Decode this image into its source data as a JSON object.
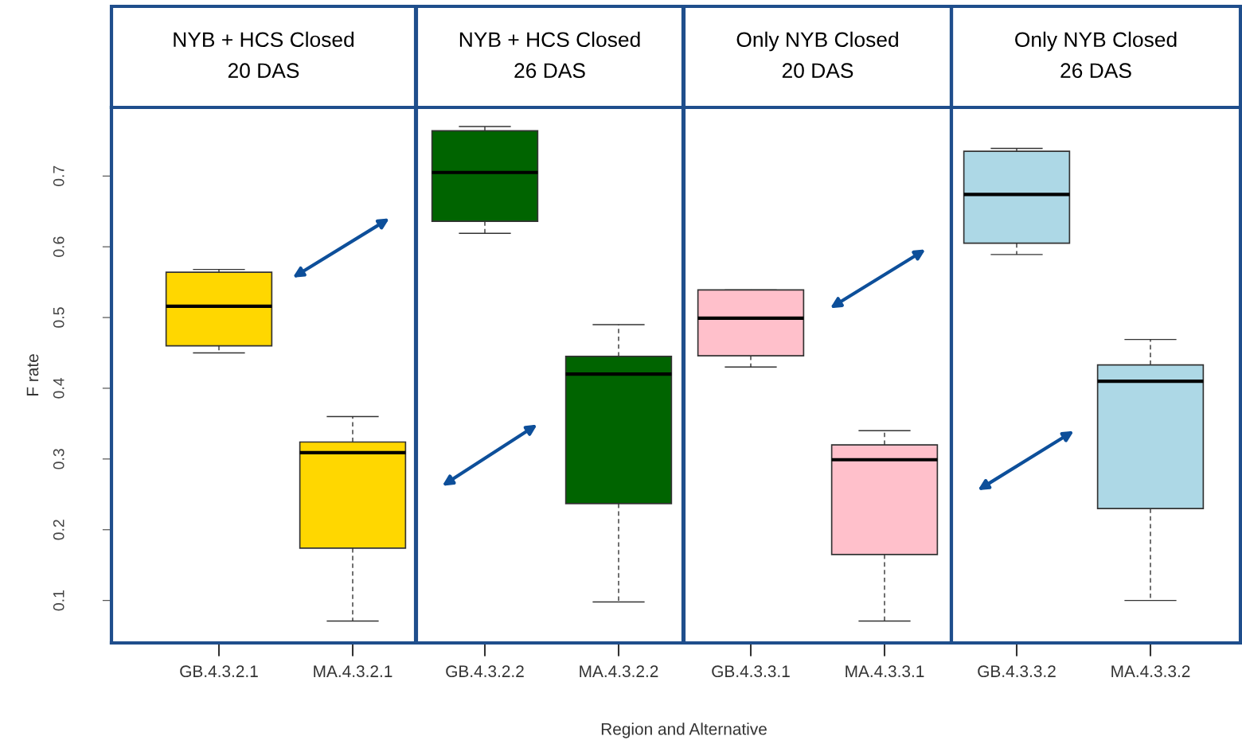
{
  "chart_data": [
    {
      "type": "box",
      "title": "NYB + HCS Closed\n20 DAS",
      "ylabel": "F rate",
      "categories": [
        "GB.4.3.2.1",
        "MA.4.3.2.1"
      ],
      "color": "#ffd700",
      "ylim": [
        0.04,
        0.797
      ],
      "yticks": [
        0.1,
        0.2,
        0.3,
        0.4,
        0.5,
        0.6,
        0.7
      ],
      "annotations": [
        "Region and Alternative"
      ],
      "boxes": [
        {
          "low": 0.45,
          "q1": 0.46,
          "median": 0.516,
          "q3": 0.564,
          "high": 0.568
        },
        {
          "low": 0.071,
          "q1": 0.174,
          "median": 0.309,
          "q3": 0.324,
          "high": 0.36
        }
      ]
    },
    {
      "type": "box",
      "title": "NYB + HCS Closed\n26 DAS",
      "categories": [
        "GB.4.3.2.2",
        "MA.4.3.2.2"
      ],
      "color": "#006400",
      "ylim": [
        0.04,
        0.797
      ],
      "tick_labels": "x",
      "boxes": [
        {
          "low": 0.619,
          "q1": 0.636,
          "median": 0.705,
          "q3": 0.764,
          "high": 0.77
        },
        {
          "low": 0.098,
          "q1": 0.237,
          "median": 0.42,
          "q3": 0.445,
          "high": 0.49
        }
      ]
    },
    {
      "type": "box",
      "title": "Only NYB Closed\n20 DAS",
      "categories": [
        "GB.4.3.3.1",
        "MA.4.3.3.1"
      ],
      "color": "#ffc0cb",
      "ylim": [
        0.04,
        0.797
      ],
      "tick_labels": "x",
      "boxes": [
        {
          "low": 0.43,
          "q1": 0.446,
          "median": 0.499,
          "q3": 0.539,
          "high": 0.539
        },
        {
          "low": 0.071,
          "q1": 0.165,
          "median": 0.299,
          "q3": 0.32,
          "high": 0.34
        }
      ]
    },
    {
      "type": "box",
      "title": "Only NYB Closed\n26 DAS",
      "categories": [
        "GB.4.3.3.2",
        "MA.4.3.3.2"
      ],
      "color": "#add8e6",
      "ylim": [
        0.04,
        0.797
      ],
      "tick_labels": "x",
      "boxes": [
        {
          "low": 0.589,
          "q1": 0.605,
          "median": 0.674,
          "q3": 0.735,
          "high": 0.739
        },
        {
          "low": 0.1,
          "q1": 0.23,
          "median": 0.41,
          "q3": 0.433,
          "high": 0.469
        }
      ]
    }
  ]
}
